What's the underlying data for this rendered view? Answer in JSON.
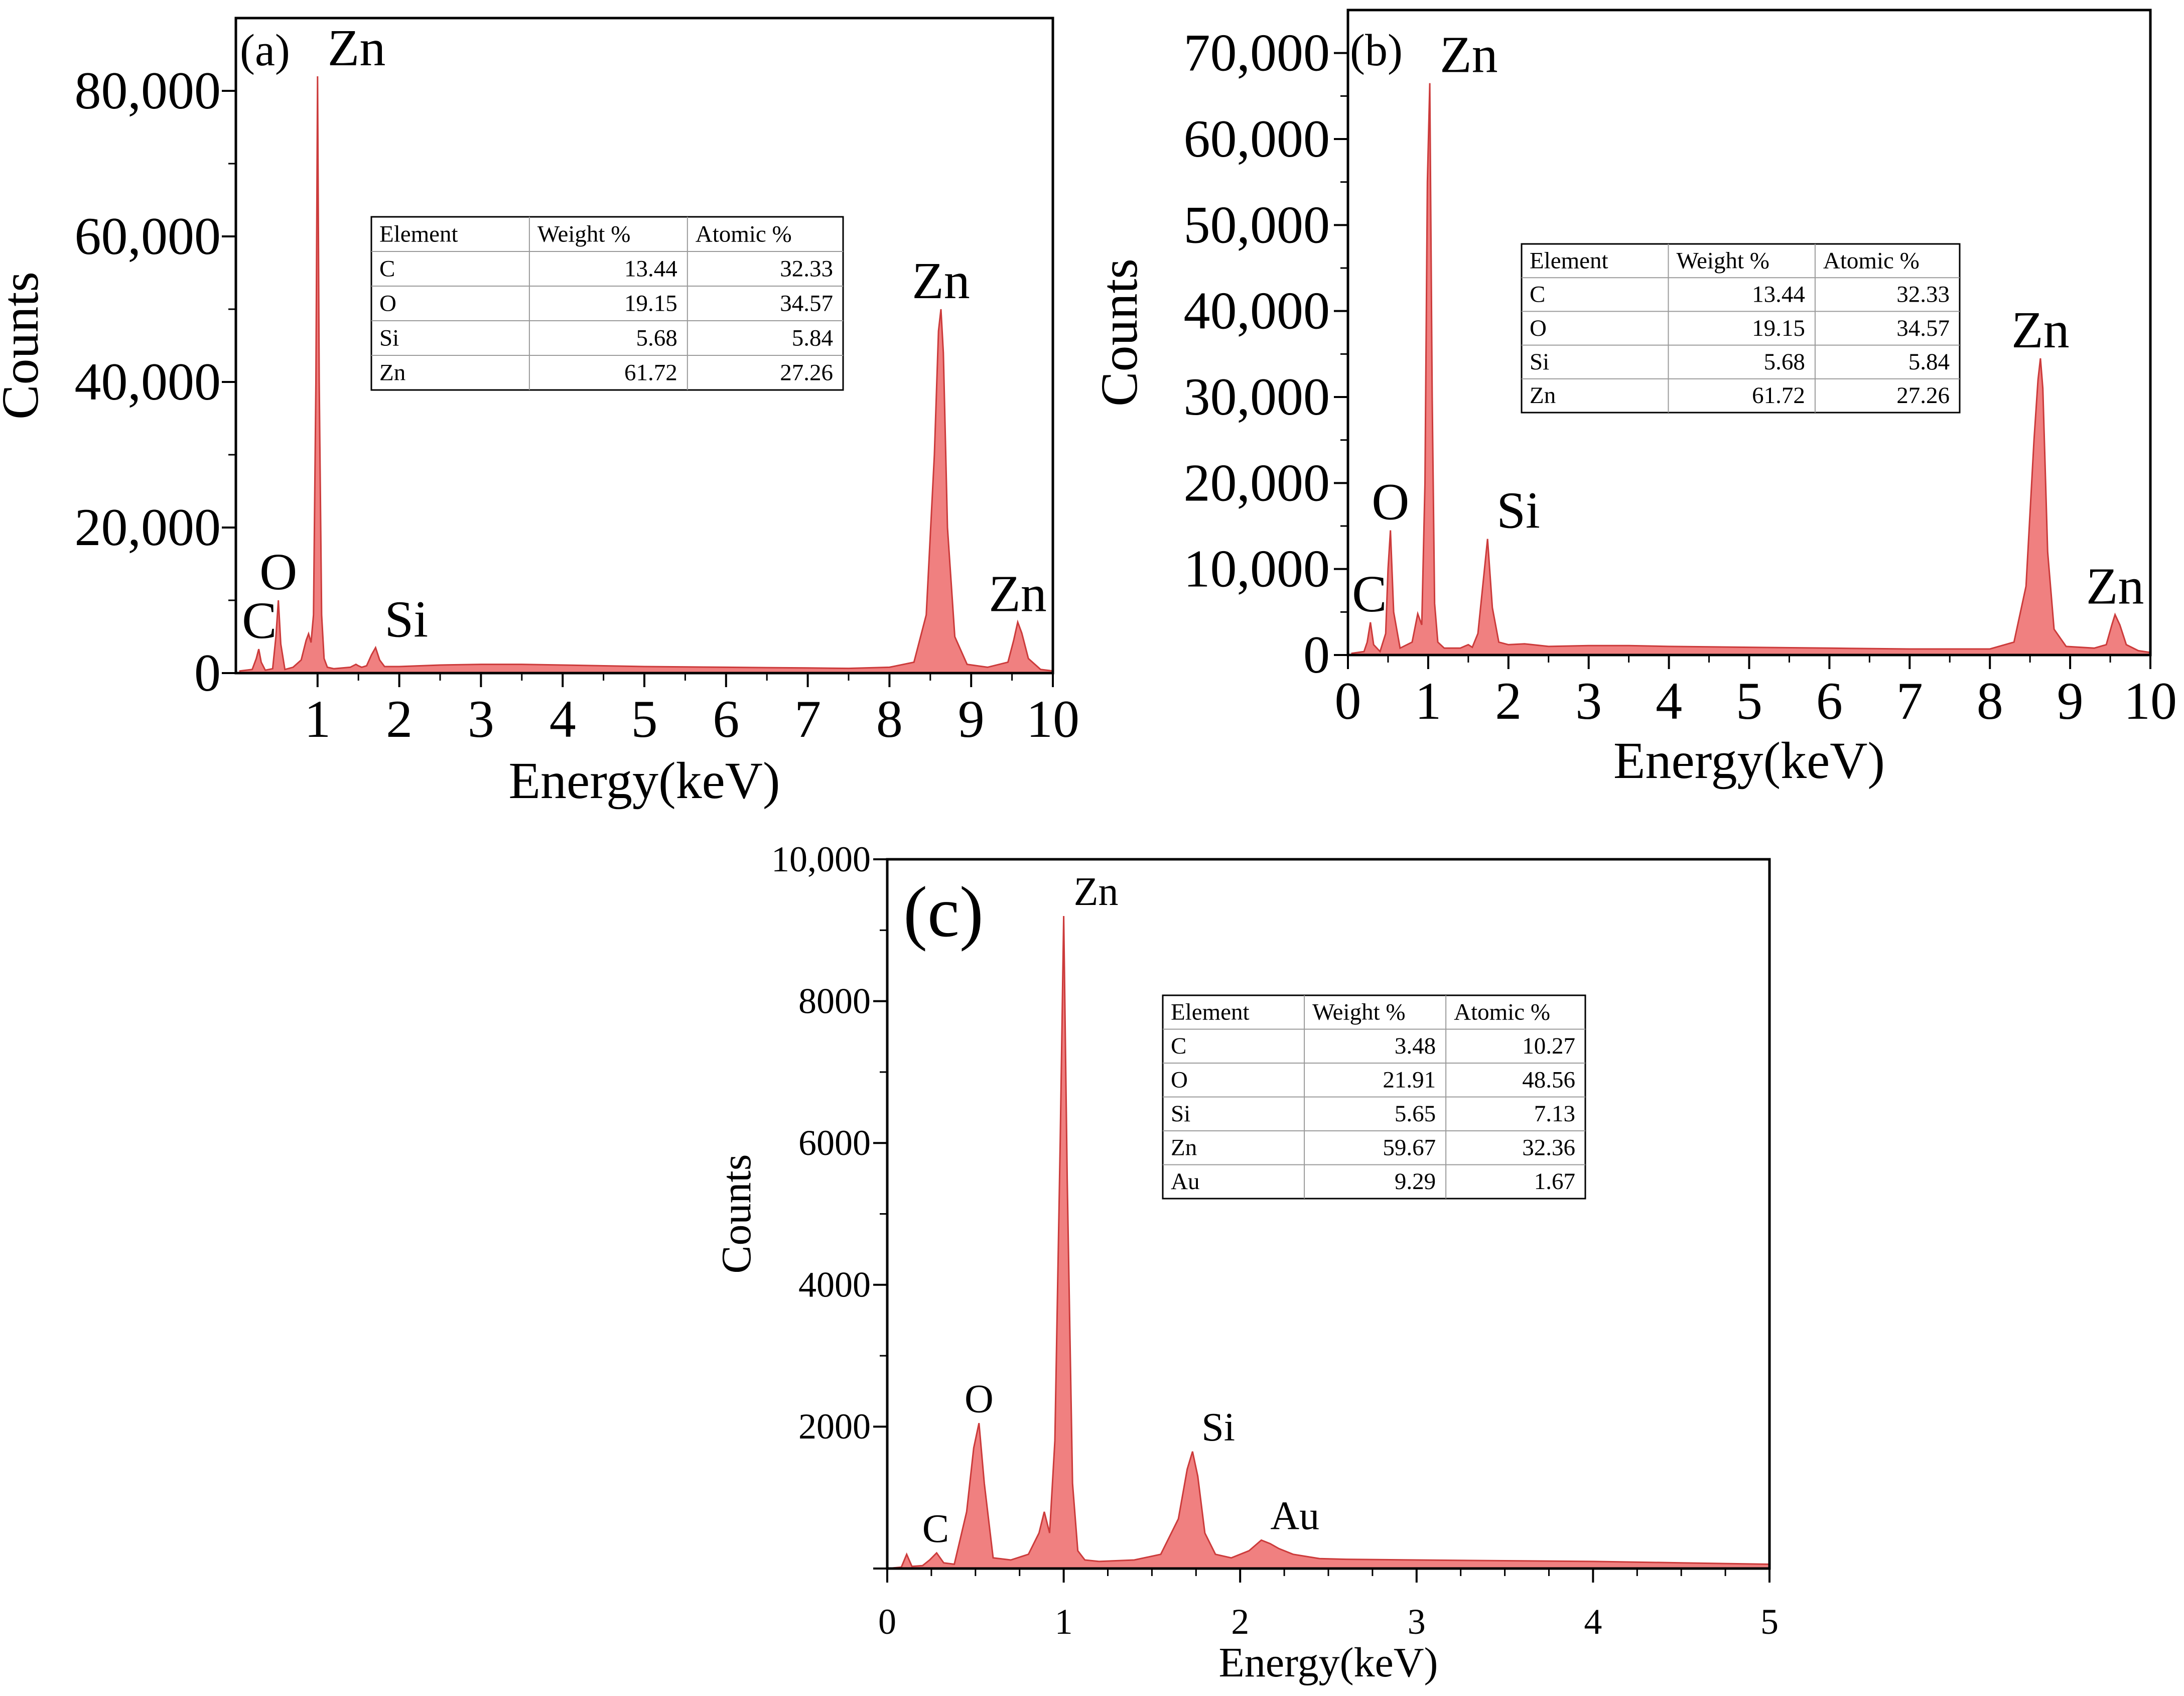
{
  "colors": {
    "fill": "#f08080",
    "stroke": "#cc3b3b",
    "axis": "#000000"
  },
  "chart_data": [
    {
      "type": "area",
      "panel_label": "(a)",
      "xlabel": "Energy(keV)",
      "ylabel": "Counts",
      "xlim": [
        0,
        10
      ],
      "ylim": [
        0,
        90000
      ],
      "xticks": [
        1,
        2,
        3,
        4,
        5,
        6,
        7,
        8,
        9,
        10
      ],
      "xtick_labels": [
        "1",
        "2",
        "3",
        "4",
        "5",
        "6",
        "7",
        "8",
        "9",
        "10"
      ],
      "yticks": [
        0,
        20000,
        40000,
        60000,
        80000
      ],
      "ytick_labels": [
        "0",
        "20,000",
        "40,000",
        "60,000",
        "80,000"
      ],
      "spectrum": {
        "x": [
          0.05,
          0.2,
          0.25,
          0.28,
          0.31,
          0.36,
          0.45,
          0.49,
          0.52,
          0.55,
          0.6,
          0.7,
          0.8,
          0.86,
          0.89,
          0.92,
          0.95,
          0.98,
          1.0,
          1.02,
          1.05,
          1.08,
          1.12,
          1.2,
          1.4,
          1.47,
          1.5,
          1.54,
          1.6,
          1.66,
          1.71,
          1.76,
          1.82,
          2.0,
          2.5,
          3.0,
          3.5,
          4.0,
          5.0,
          6.0,
          7.0,
          7.5,
          8.0,
          8.3,
          8.45,
          8.55,
          8.6,
          8.63,
          8.66,
          8.71,
          8.8,
          8.95,
          9.2,
          9.45,
          9.52,
          9.57,
          9.62,
          9.7,
          9.85,
          10.0
        ],
        "y": [
          300,
          500,
          2000,
          3300,
          1500,
          400,
          600,
          5000,
          10000,
          4000,
          500,
          800,
          1800,
          4500,
          5400,
          4200,
          8000,
          40000,
          82000,
          40000,
          8000,
          2000,
          800,
          600,
          800,
          1200,
          1000,
          800,
          1000,
          2500,
          3500,
          1800,
          900,
          900,
          1100,
          1200,
          1200,
          1100,
          900,
          800,
          700,
          650,
          800,
          1500,
          8000,
          30000,
          47000,
          50000,
          44000,
          20000,
          5000,
          1200,
          800,
          1500,
          4500,
          7000,
          5500,
          2000,
          500,
          300
        ]
      },
      "peak_labels": [
        {
          "text": "C",
          "x": 0.3,
          "y": 3300
        },
        {
          "text": "O",
          "x": 0.52,
          "y": 10000
        },
        {
          "text": "Zn",
          "x": 1.0,
          "y": 82000
        },
        {
          "text": "Si",
          "x": 1.71,
          "y": 3500
        },
        {
          "text": "Zn",
          "x": 8.63,
          "y": 50000
        },
        {
          "text": "Zn",
          "x": 9.57,
          "y": 7000
        }
      ],
      "table": {
        "headers": [
          "Element",
          "Weight %",
          "Atomic %"
        ],
        "rows": [
          [
            "C",
            "13.44",
            "32.33"
          ],
          [
            "O",
            "19.15",
            "34.57"
          ],
          [
            "Si",
            "5.68",
            "5.84"
          ],
          [
            "Zn",
            "61.72",
            "27.26"
          ]
        ]
      }
    },
    {
      "type": "area",
      "panel_label": "(b)",
      "xlabel": "Energy(keV)",
      "ylabel": "Counts",
      "xlim": [
        0,
        10
      ],
      "ylim": [
        0,
        75000
      ],
      "xticks": [
        0,
        1,
        2,
        3,
        4,
        5,
        6,
        7,
        8,
        9,
        10
      ],
      "xtick_labels": [
        "0",
        "1",
        "2",
        "3",
        "4",
        "5",
        "6",
        "7",
        "8",
        "9",
        "10"
      ],
      "yticks": [
        0,
        10000,
        20000,
        30000,
        40000,
        50000,
        60000,
        70000
      ],
      "ytick_labels": [
        "0",
        "10,000",
        "20,000",
        "30,000",
        "40,000",
        "50,000",
        "60,000",
        "70,000"
      ],
      "spectrum": {
        "x": [
          0.05,
          0.2,
          0.24,
          0.28,
          0.32,
          0.4,
          0.47,
          0.5,
          0.53,
          0.57,
          0.65,
          0.8,
          0.87,
          0.92,
          0.96,
          0.99,
          1.02,
          1.05,
          1.08,
          1.12,
          1.2,
          1.4,
          1.5,
          1.55,
          1.62,
          1.68,
          1.74,
          1.8,
          1.88,
          2.0,
          2.2,
          2.5,
          3.0,
          3.5,
          4.0,
          5.0,
          6.0,
          7.0,
          8.0,
          8.3,
          8.45,
          8.55,
          8.6,
          8.63,
          8.66,
          8.72,
          8.8,
          8.95,
          9.3,
          9.45,
          9.52,
          9.56,
          9.62,
          9.7,
          9.85,
          10.0
        ],
        "y": [
          200,
          400,
          1500,
          3800,
          1200,
          400,
          2500,
          10000,
          14500,
          5000,
          800,
          1500,
          4800,
          3500,
          20000,
          55000,
          66500,
          30000,
          6000,
          1500,
          800,
          800,
          1200,
          900,
          2500,
          8000,
          13500,
          5500,
          1500,
          1200,
          1300,
          1000,
          1100,
          1100,
          1000,
          900,
          800,
          700,
          700,
          1500,
          8000,
          25000,
          32000,
          34500,
          31000,
          12000,
          3000,
          1000,
          800,
          1200,
          3500,
          4700,
          3500,
          1200,
          500,
          300
        ]
      },
      "peak_labels": [
        {
          "text": "C",
          "x": 0.28,
          "y": 3800
        },
        {
          "text": "O",
          "x": 0.53,
          "y": 14500
        },
        {
          "text": "Zn",
          "x": 1.02,
          "y": 66500
        },
        {
          "text": "Si",
          "x": 1.74,
          "y": 13500
        },
        {
          "text": "Zn",
          "x": 8.63,
          "y": 34500
        },
        {
          "text": "Zn",
          "x": 9.56,
          "y": 4700
        }
      ],
      "table": {
        "headers": [
          "Element",
          "Weight %",
          "Atomic %"
        ],
        "rows": [
          [
            "C",
            "13.44",
            "32.33"
          ],
          [
            "O",
            "19.15",
            "34.57"
          ],
          [
            "Si",
            "5.68",
            "5.84"
          ],
          [
            "Zn",
            "61.72",
            "27.26"
          ]
        ]
      }
    },
    {
      "type": "area",
      "panel_label": "(c)",
      "xlabel": "Energy(keV)",
      "ylabel": "Counts",
      "xlim": [
        0,
        5
      ],
      "ylim": [
        0,
        10000
      ],
      "xticks": [
        0,
        1,
        2,
        3,
        4,
        5
      ],
      "xtick_labels": [
        "0",
        "1",
        "2",
        "3",
        "4",
        "5"
      ],
      "yticks": [
        2000,
        4000,
        6000,
        8000,
        10000
      ],
      "ytick_labels": [
        "2000",
        "4000",
        "6000",
        "8000",
        "10,000"
      ],
      "spectrum": {
        "x": [
          0.0,
          0.08,
          0.11,
          0.14,
          0.2,
          0.24,
          0.28,
          0.32,
          0.38,
          0.45,
          0.49,
          0.52,
          0.55,
          0.6,
          0.7,
          0.8,
          0.86,
          0.89,
          0.92,
          0.95,
          0.98,
          1.0,
          1.02,
          1.05,
          1.08,
          1.12,
          1.2,
          1.4,
          1.55,
          1.65,
          1.7,
          1.73,
          1.76,
          1.8,
          1.86,
          1.95,
          2.05,
          2.12,
          2.17,
          2.22,
          2.3,
          2.45,
          2.6,
          3.0,
          3.5,
          4.0,
          4.5,
          5.0
        ],
        "y": [
          0,
          20,
          200,
          30,
          40,
          120,
          220,
          80,
          60,
          800,
          1700,
          2050,
          1200,
          150,
          120,
          200,
          500,
          800,
          500,
          1800,
          6000,
          9200,
          5500,
          1200,
          250,
          120,
          100,
          120,
          200,
          700,
          1400,
          1650,
          1300,
          500,
          200,
          150,
          250,
          400,
          350,
          280,
          200,
          140,
          130,
          120,
          110,
          100,
          80,
          60
        ]
      },
      "peak_labels": [
        {
          "text": "C",
          "x": 0.28,
          "y": 220
        },
        {
          "text": "O",
          "x": 0.52,
          "y": 2050
        },
        {
          "text": "Zn",
          "x": 1.0,
          "y": 9200
        },
        {
          "text": "Si",
          "x": 1.73,
          "y": 1650
        },
        {
          "text": "Au",
          "x": 2.12,
          "y": 400
        }
      ],
      "table": {
        "headers": [
          "Element",
          "Weight %",
          "Atomic %"
        ],
        "rows": [
          [
            "C",
            "3.48",
            "10.27"
          ],
          [
            "O",
            "21.91",
            "48.56"
          ],
          [
            "Si",
            "5.65",
            "7.13"
          ],
          [
            "Zn",
            "59.67",
            "32.36"
          ],
          [
            "Au",
            "9.29",
            "1.67"
          ]
        ]
      }
    }
  ]
}
